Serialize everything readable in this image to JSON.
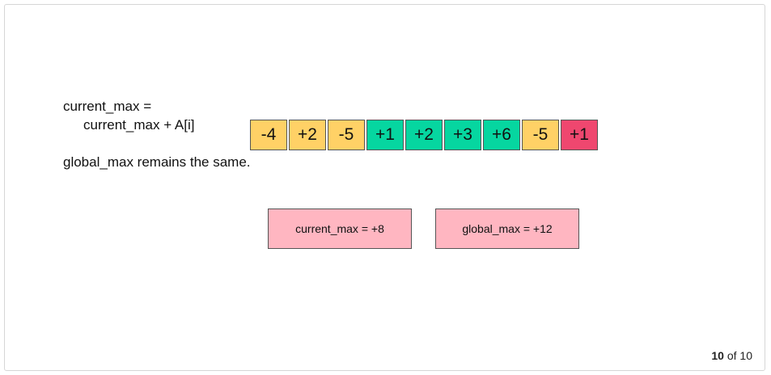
{
  "explanation": {
    "line1": "current_max =",
    "line2": "current_max + A[i]",
    "line3": "global_max remains the same."
  },
  "array": [
    {
      "value": "-4",
      "color": "#ffd166"
    },
    {
      "value": "+2",
      "color": "#ffd166"
    },
    {
      "value": "-5",
      "color": "#ffd166"
    },
    {
      "value": "+1",
      "color": "#06d6a0"
    },
    {
      "value": "+2",
      "color": "#06d6a0"
    },
    {
      "value": "+3",
      "color": "#06d6a0"
    },
    {
      "value": "+6",
      "color": "#06d6a0"
    },
    {
      "value": "-5",
      "color": "#ffd166"
    },
    {
      "value": "+1",
      "color": "#ef476f"
    }
  ],
  "boxes": {
    "current": "current_max = +8",
    "global": "global_max = +12"
  },
  "pagination": {
    "current": "10",
    "separator": "of",
    "total": "10"
  }
}
